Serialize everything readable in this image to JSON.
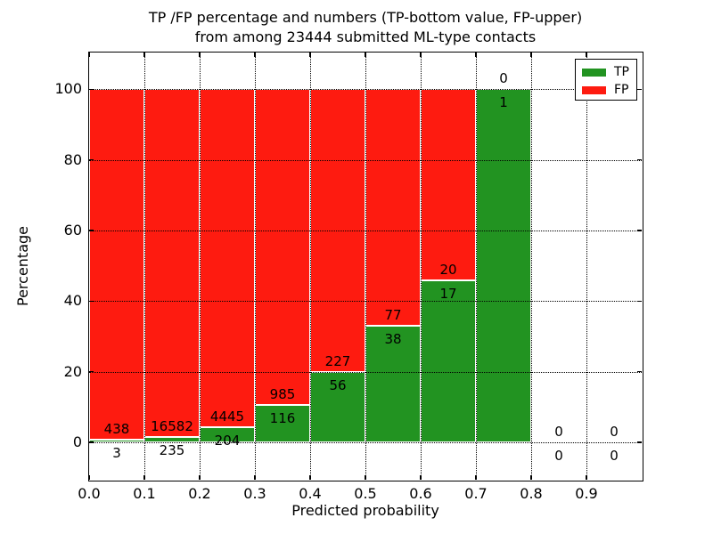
{
  "chart_data": {
    "type": "bar",
    "subtype": "stacked-percentage-histogram",
    "title_line1": "TP /FP percentage and numbers (TP-bottom value, FP-upper)",
    "title_line2": "from among 23444 submitted ML-type contacts",
    "total_contacts": 23444,
    "xlabel": "Predicted probability",
    "ylabel": "Percentage",
    "xlim": [
      0,
      1
    ],
    "ylim": [
      -10.6,
      110.4
    ],
    "x_tick_values": [
      0,
      0.1,
      0.2,
      0.3,
      0.4,
      0.5,
      0.6,
      0.7,
      0.8,
      0.9
    ],
    "x_tick_labels": [
      "0.0",
      "0.1",
      "0.2",
      "0.3",
      "0.4",
      "0.5",
      "0.6",
      "0.7",
      "0.8",
      "0.9"
    ],
    "y_tick_values": [
      0,
      20,
      40,
      60,
      80,
      100
    ],
    "y_tick_labels": [
      "0",
      "20",
      "40",
      "60",
      "80",
      "100"
    ],
    "grid": "dotted",
    "annotation_rule": "FP count printed above TP/FP boundary, TP count printed below it",
    "legend": {
      "position": "upper-right",
      "entries": [
        {
          "label": "TP",
          "color": "#229321"
        },
        {
          "label": "FP",
          "color": "#fe1b10"
        }
      ]
    },
    "bins": [
      {
        "x0": 0.0,
        "x1": 0.1,
        "tp": 3,
        "fp": 438
      },
      {
        "x0": 0.1,
        "x1": 0.2,
        "tp": 235,
        "fp": 16582
      },
      {
        "x0": 0.2,
        "x1": 0.3,
        "tp": 204,
        "fp": 4445
      },
      {
        "x0": 0.3,
        "x1": 0.4,
        "tp": 116,
        "fp": 985
      },
      {
        "x0": 0.4,
        "x1": 0.5,
        "tp": 56,
        "fp": 227
      },
      {
        "x0": 0.5,
        "x1": 0.6,
        "tp": 38,
        "fp": 77
      },
      {
        "x0": 0.6,
        "x1": 0.7,
        "tp": 17,
        "fp": 20
      },
      {
        "x0": 0.7,
        "x1": 0.8,
        "tp": 1,
        "fp": 0
      },
      {
        "x0": 0.8,
        "x1": 0.9,
        "tp": 0,
        "fp": 0
      },
      {
        "x0": 0.9,
        "x1": 1.0,
        "tp": 0,
        "fp": 0
      }
    ],
    "colors": {
      "tp": "#229321",
      "fp": "#fe1b10",
      "bar_edge": "#ffffff",
      "grid": "#000000",
      "text": "#000000",
      "background": "#ffffff"
    }
  }
}
